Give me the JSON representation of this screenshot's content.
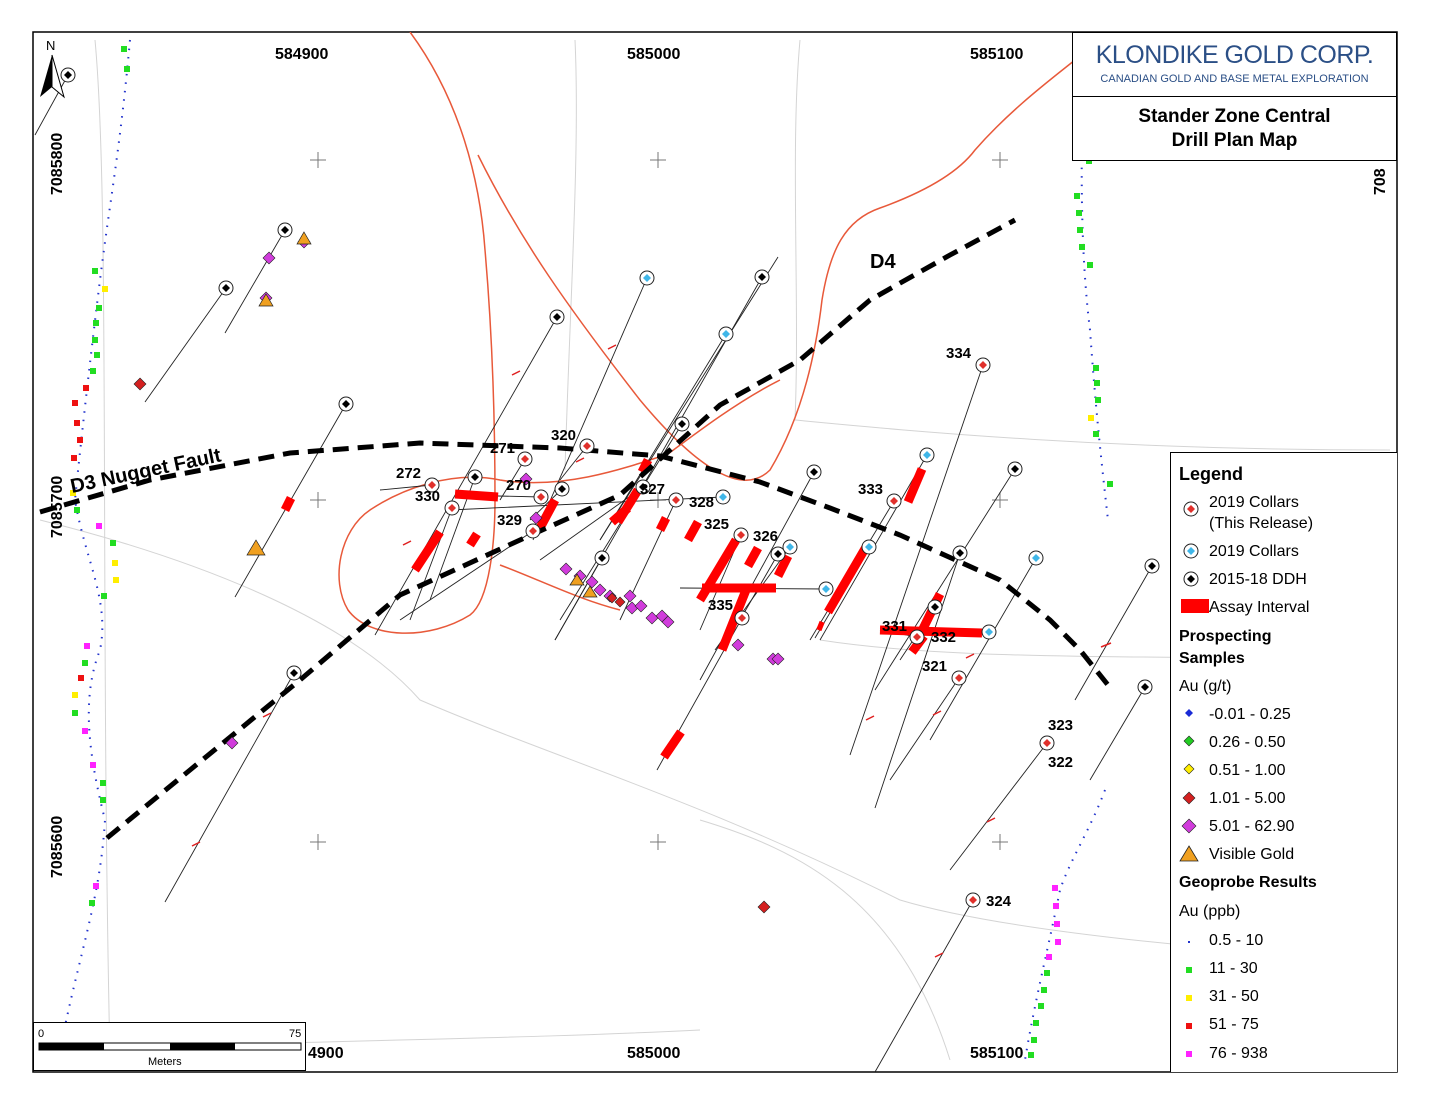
{
  "title_block": {
    "company": "KLONDIKE GOLD CORP.",
    "company_sub": "CANADIAN GOLD AND BASE METAL EXPLORATION",
    "title_line1": "Stander Zone Central",
    "title_line2": "Drill Plan Map"
  },
  "north_arrow": {
    "label": "N"
  },
  "grid": {
    "eastings": [
      "584900",
      "585000",
      "585100"
    ],
    "northings": [
      "7085800",
      "7085700",
      "7085600"
    ],
    "bottom_eastings": [
      "4900",
      "585000",
      "585100"
    ],
    "right_partial": "708"
  },
  "faults": [
    {
      "name": "D3 Nugget Fault"
    },
    {
      "name": "D4"
    }
  ],
  "hole_labels": [
    "271",
    "320",
    "272",
    "330",
    "270",
    "327",
    "328",
    "329",
    "325",
    "326",
    "335",
    "333",
    "334",
    "331",
    "332",
    "321",
    "323",
    "322",
    "324"
  ],
  "scale_bar": {
    "start": "0",
    "end": "75",
    "unit": "Meters"
  },
  "legend": {
    "title": "Legend",
    "collars": [
      {
        "label_line1": "2019 Collars",
        "label_line2": "(This Release)",
        "color": "#e0302b"
      },
      {
        "label_line1": "2019 Collars",
        "label_line2": "",
        "color": "#3fb6e8"
      },
      {
        "label_line1": "2015-18 DDH",
        "label_line2": "",
        "color": "#000000"
      }
    ],
    "assay_interval": {
      "label": "Assay Interval",
      "color": "#ff0000"
    },
    "prospecting": {
      "title_line1": "Prospecting",
      "title_line2": "Samples",
      "unit": "Au (g/t)",
      "classes": [
        {
          "label": "-0.01 - 0.25",
          "color": "#1a2bd6"
        },
        {
          "label": "0.26 - 0.50",
          "color": "#22cc22"
        },
        {
          "label": "0.51 - 1.00",
          "color": "#ffee00"
        },
        {
          "label": "1.01 - 5.00",
          "color": "#d42020"
        },
        {
          "label": "5.01 - 62.90",
          "color": "#d13cdc"
        }
      ],
      "visible_gold": {
        "label": "Visible Gold",
        "color": "#f0a020"
      }
    },
    "geoprobe": {
      "title": "Geoprobe Results",
      "unit": "Au (ppb)",
      "classes": [
        {
          "label": "0.5 - 10",
          "color": "#2233cc"
        },
        {
          "label": "11 - 30",
          "color": "#22dd22"
        },
        {
          "label": "31 - 50",
          "color": "#ffee00"
        },
        {
          "label": "51 - 75",
          "color": "#ee1111"
        },
        {
          "label": "76 - 938",
          "color": "#ff22ff"
        }
      ]
    }
  }
}
